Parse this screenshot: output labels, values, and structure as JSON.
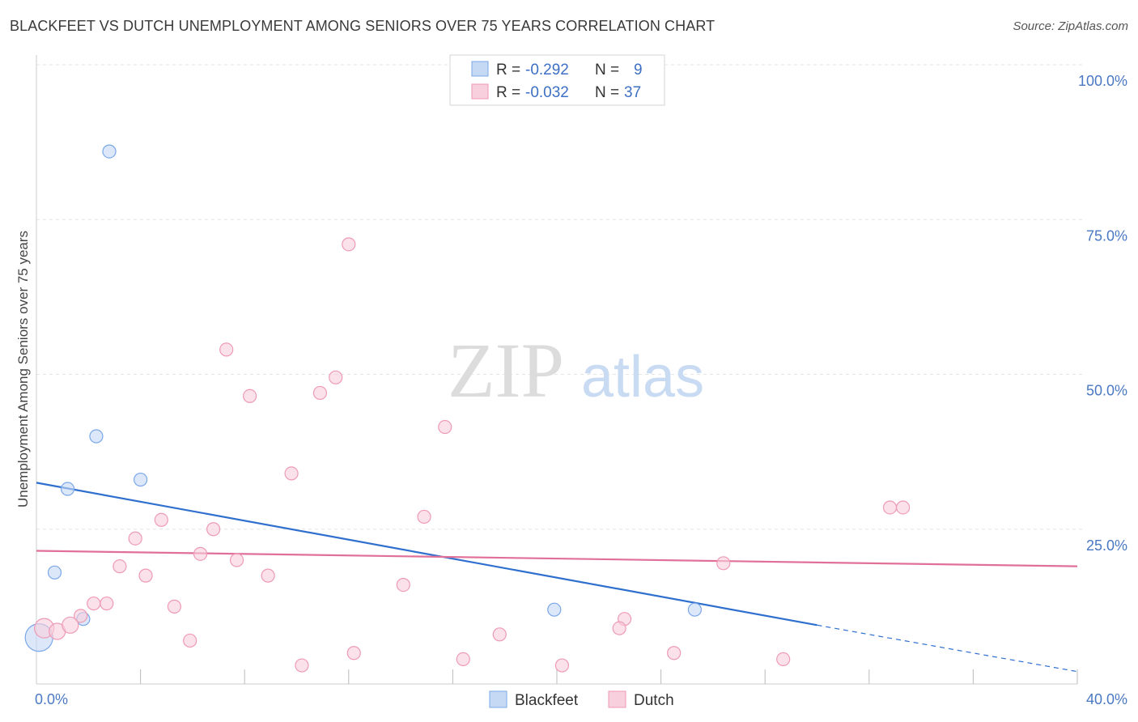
{
  "chart_data": {
    "type": "scatter",
    "title": "BLACKFEET VS DUTCH UNEMPLOYMENT AMONG SENIORS OVER 75 YEARS CORRELATION CHART",
    "source": "Source: ZipAtlas.com",
    "ylabel": "Unemployment Among Seniors over 75 years",
    "xlabel": "",
    "xlim": [
      0,
      40
    ],
    "ylim": [
      0,
      100
    ],
    "x_ticks": [
      {
        "value": 0,
        "label": "0.0%"
      },
      {
        "value": 40,
        "label": "40.0%"
      }
    ],
    "y_ticks": [
      {
        "value": 25,
        "label": "25.0%"
      },
      {
        "value": 50,
        "label": "50.0%"
      },
      {
        "value": 75,
        "label": "75.0%"
      },
      {
        "value": 100,
        "label": "100.0%"
      }
    ],
    "watermark": {
      "part1": "ZIP",
      "part2": "atlas"
    },
    "stats_legend": [
      {
        "r_label": "R =",
        "r_value": "-0.292",
        "n_label": "N =",
        "n_value": "9"
      },
      {
        "r_label": "R =",
        "r_value": "-0.032",
        "n_label": "N =",
        "n_value": "37"
      }
    ],
    "series": [
      {
        "name": "Blackfeet",
        "color": "#7aa7e8",
        "fill": "#c5d9f5",
        "line_color": "#2f6fce",
        "trend": {
          "x0": 0,
          "y0": 32.5,
          "x1": 30,
          "y1": 9.5,
          "dash_to_x": 40,
          "dash_to_y": 2.0
        },
        "points": [
          {
            "x": 2.8,
            "y": 86.0,
            "r": 8
          },
          {
            "x": 2.3,
            "y": 40.0,
            "r": 8
          },
          {
            "x": 4.0,
            "y": 33.0,
            "r": 8
          },
          {
            "x": 1.2,
            "y": 31.5,
            "r": 8
          },
          {
            "x": 0.7,
            "y": 18.0,
            "r": 8
          },
          {
            "x": 1.8,
            "y": 10.5,
            "r": 8
          },
          {
            "x": 0.1,
            "y": 7.5,
            "r": 17
          },
          {
            "x": 19.9,
            "y": 12.0,
            "r": 8
          },
          {
            "x": 25.3,
            "y": 12.0,
            "r": 8
          }
        ]
      },
      {
        "name": "Dutch",
        "color": "#ee9ab5",
        "fill": "#f8cfdc",
        "line_color": "#e0709a",
        "trend": {
          "x0": 0,
          "y0": 21.5,
          "x1": 40,
          "y1": 19.0
        },
        "points": [
          {
            "x": 12.0,
            "y": 71.0,
            "r": 8
          },
          {
            "x": 7.3,
            "y": 54.0,
            "r": 8
          },
          {
            "x": 11.5,
            "y": 49.5,
            "r": 8
          },
          {
            "x": 8.2,
            "y": 46.5,
            "r": 8
          },
          {
            "x": 10.9,
            "y": 47.0,
            "r": 8
          },
          {
            "x": 15.7,
            "y": 41.5,
            "r": 8
          },
          {
            "x": 9.8,
            "y": 34.0,
            "r": 8
          },
          {
            "x": 14.9,
            "y": 27.0,
            "r": 8
          },
          {
            "x": 32.8,
            "y": 28.5,
            "r": 8
          },
          {
            "x": 33.3,
            "y": 28.5,
            "r": 8
          },
          {
            "x": 4.8,
            "y": 26.5,
            "r": 8
          },
          {
            "x": 6.8,
            "y": 25.0,
            "r": 8
          },
          {
            "x": 3.8,
            "y": 23.5,
            "r": 8
          },
          {
            "x": 6.3,
            "y": 21.0,
            "r": 8
          },
          {
            "x": 7.7,
            "y": 20.0,
            "r": 8
          },
          {
            "x": 3.2,
            "y": 19.0,
            "r": 8
          },
          {
            "x": 26.4,
            "y": 19.5,
            "r": 8
          },
          {
            "x": 4.2,
            "y": 17.5,
            "r": 8
          },
          {
            "x": 8.9,
            "y": 17.5,
            "r": 8
          },
          {
            "x": 14.1,
            "y": 16.0,
            "r": 8
          },
          {
            "x": 2.2,
            "y": 13.0,
            "r": 8
          },
          {
            "x": 2.7,
            "y": 13.0,
            "r": 8
          },
          {
            "x": 5.3,
            "y": 12.5,
            "r": 8
          },
          {
            "x": 1.7,
            "y": 11.0,
            "r": 8
          },
          {
            "x": 0.3,
            "y": 9.0,
            "r": 12
          },
          {
            "x": 0.8,
            "y": 8.5,
            "r": 10
          },
          {
            "x": 1.3,
            "y": 9.5,
            "r": 10
          },
          {
            "x": 22.6,
            "y": 10.5,
            "r": 8
          },
          {
            "x": 22.4,
            "y": 9.0,
            "r": 8
          },
          {
            "x": 17.8,
            "y": 8.0,
            "r": 8
          },
          {
            "x": 5.9,
            "y": 7.0,
            "r": 8
          },
          {
            "x": 12.2,
            "y": 5.0,
            "r": 8
          },
          {
            "x": 24.5,
            "y": 5.0,
            "r": 8
          },
          {
            "x": 16.4,
            "y": 4.0,
            "r": 8
          },
          {
            "x": 28.7,
            "y": 4.0,
            "r": 8
          },
          {
            "x": 10.2,
            "y": 3.0,
            "r": 8
          },
          {
            "x": 20.2,
            "y": 3.0,
            "r": 8
          }
        ]
      }
    ]
  }
}
